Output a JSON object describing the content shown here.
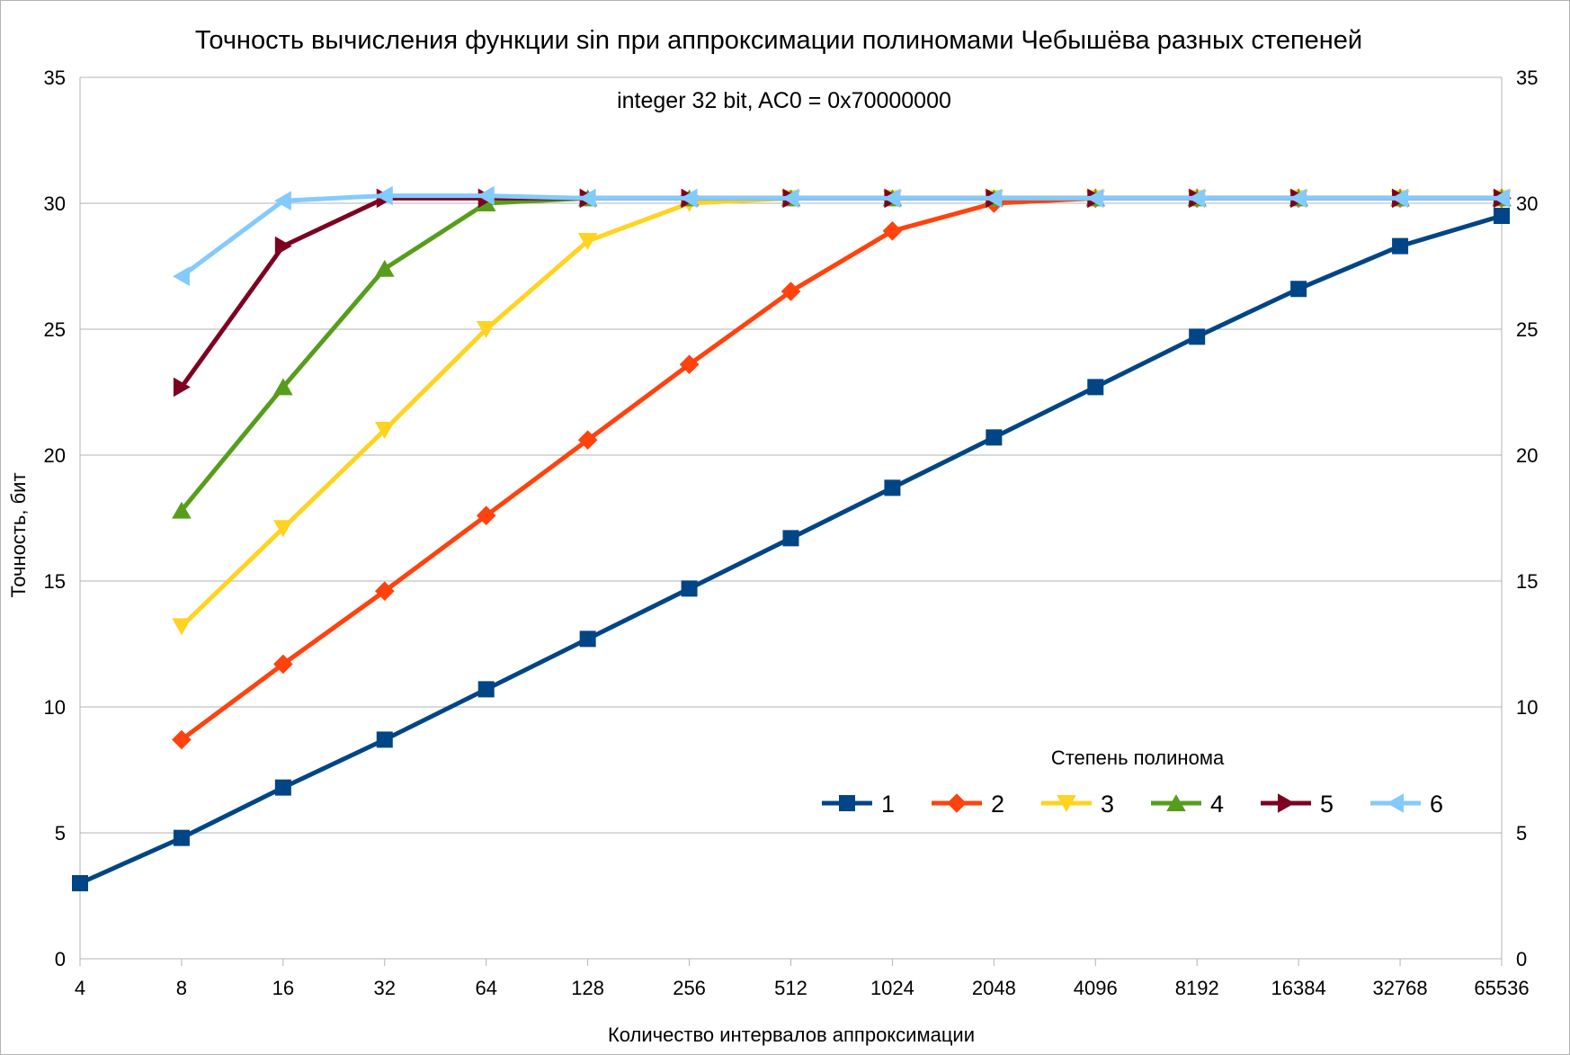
{
  "chart_data": {
    "type": "line",
    "title": "Точность вычисления функции sin при аппроксимации полиномами Чебышёва разных степеней",
    "subtitle": "integer 32 bit, AC0 = 0x70000000",
    "xlabel": "Количество интервалов аппроксимации",
    "ylabel": "Точность, бит",
    "categories": [
      "4",
      "8",
      "16",
      "32",
      "64",
      "128",
      "256",
      "512",
      "1024",
      "2048",
      "4096",
      "8192",
      "16384",
      "32768",
      "65536"
    ],
    "x_scale": "log2",
    "ylim": [
      0,
      35
    ],
    "yticks": [
      0,
      5,
      10,
      15,
      20,
      25,
      30,
      35
    ],
    "secondary_y_axis": true,
    "grid": true,
    "legend": {
      "title": "Степень полинома",
      "placement": "bottom-right"
    },
    "series": [
      {
        "name": "1",
        "color": "#004586",
        "marker": "square",
        "values": [
          3.0,
          4.8,
          6.8,
          8.7,
          10.7,
          12.7,
          14.7,
          16.7,
          18.7,
          20.7,
          22.7,
          24.7,
          26.6,
          28.3,
          29.5
        ]
      },
      {
        "name": "2",
        "color": "#ff420e",
        "marker": "diamond",
        "values": [
          null,
          8.7,
          11.7,
          14.6,
          17.6,
          20.6,
          23.6,
          26.5,
          28.9,
          30.0,
          30.2,
          30.2,
          30.2,
          30.2,
          30.2
        ]
      },
      {
        "name": "3",
        "color": "#ffd320",
        "marker": "triangle-down",
        "values": [
          null,
          13.2,
          17.1,
          21.0,
          25.0,
          28.5,
          30.0,
          30.2,
          30.2,
          30.2,
          30.2,
          30.2,
          30.2,
          30.2,
          30.2
        ]
      },
      {
        "name": "4",
        "color": "#579d1c",
        "marker": "triangle-up",
        "values": [
          null,
          17.8,
          22.7,
          27.4,
          30.0,
          30.2,
          30.2,
          30.2,
          30.2,
          30.2,
          30.2,
          30.2,
          30.2,
          30.2,
          30.2
        ]
      },
      {
        "name": "5",
        "color": "#7e0021",
        "marker": "triangle-right",
        "values": [
          null,
          22.7,
          28.3,
          30.2,
          30.2,
          30.2,
          30.2,
          30.2,
          30.2,
          30.2,
          30.2,
          30.2,
          30.2,
          30.2,
          30.2
        ]
      },
      {
        "name": "6",
        "color": "#83caff",
        "marker": "triangle-left",
        "values": [
          null,
          27.1,
          30.1,
          30.3,
          30.3,
          30.2,
          30.2,
          30.2,
          30.2,
          30.2,
          30.2,
          30.2,
          30.2,
          30.2,
          30.2
        ]
      }
    ]
  }
}
